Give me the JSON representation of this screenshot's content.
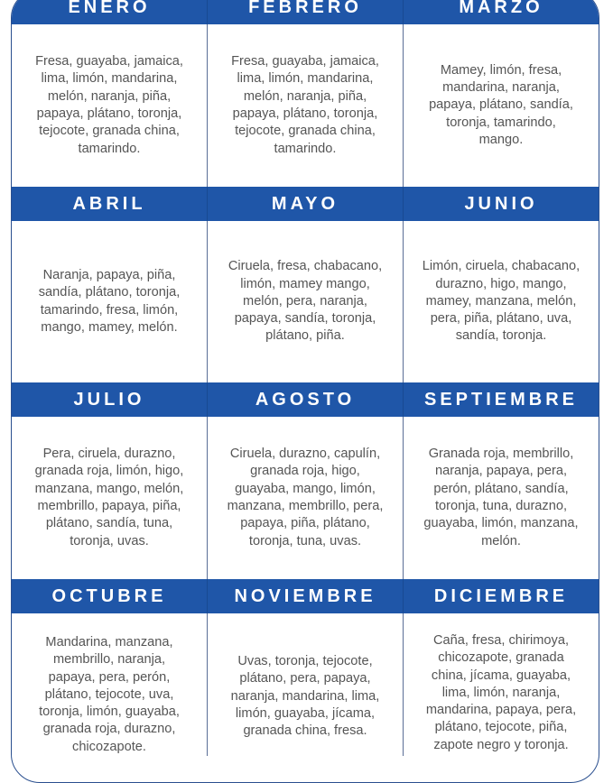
{
  "accent_color": "#1f56a8",
  "months": [
    {
      "name": "ENERO",
      "fruits": "Fresa, guayaba, jamaica,\nlima, limón, mandarina,\nmelón, naranja, piña,\npapaya, plátano, toronja,\ntejocote, granada china,\ntamarindo."
    },
    {
      "name": "FEBRERO",
      "fruits": "Fresa, guayaba, jamaica,\nlima, limón, mandarina,\nmelón, naranja, piña,\npapaya, plátano, toronja,\ntejocote, granada china,\ntamarindo."
    },
    {
      "name": "MARZO",
      "fruits": "Mamey, limón, fresa,\nmandarina, naranja,\npapaya, plátano, sandía,\ntoronja, tamarindo,\nmango."
    },
    {
      "name": "ABRIL",
      "fruits": "Naranja, papaya, piña,\nsandía, plátano, toronja,\ntamarindo, fresa, limón,\nmango, mamey, melón."
    },
    {
      "name": "MAYO",
      "fruits": "Ciruela, fresa, chabacano,\nlimón, mamey mango,\nmelón, pera, naranja,\npapaya, sandía, toronja,\nplátano, piña."
    },
    {
      "name": "JUNIO",
      "fruits": "Limón, ciruela, chabacano,\ndurazno, higo, mango,\nmamey, manzana, melón,\npera, piña, plátano, uva,\nsandía, toronja."
    },
    {
      "name": "JULIO",
      "fruits": "Pera, ciruela, durazno,\ngranada roja, limón, higo,\nmanzana, mango, melón,\nmembrillo, papaya, piña,\nplátano, sandía, tuna,\ntoronja, uvas."
    },
    {
      "name": "AGOSTO",
      "fruits": "Ciruela, durazno, capulín,\ngranada roja, higo,\nguayaba, mango, limón,\nmanzana, membrillo, pera,\npapaya, piña, plátano,\ntoronja, tuna, uvas."
    },
    {
      "name": "SEPTIEMBRE",
      "fruits": "Granada roja, membrillo,\nnaranja, papaya, pera,\nperón, plátano, sandía,\ntoronja, tuna, durazno,\nguayaba, limón, manzana,\nmelón."
    },
    {
      "name": "OCTUBRE",
      "fruits": "Mandarina, manzana,\nmembrillo, naranja,\npapaya, pera, perón,\nplátano, tejocote, uva,\ntoronja, limón, guayaba,\ngranada roja, durazno,\nchicozapote."
    },
    {
      "name": "NOVIEMBRE",
      "fruits": "Uvas, toronja, tejocote,\nplátano, pera, papaya,\nnaranja, mandarina, lima,\nlimón, guayaba, jícama,\ngranada china, fresa."
    },
    {
      "name": "DICIEMBRE",
      "fruits": "Caña, fresa, chirimoya,\nchicozapote, granada\nchina, jícama, guayaba,\nlima, limón, naranja,\nmandarina, papaya, pera,\nplátano, tejocote, piña,\nzapote negro y toronja."
    }
  ]
}
